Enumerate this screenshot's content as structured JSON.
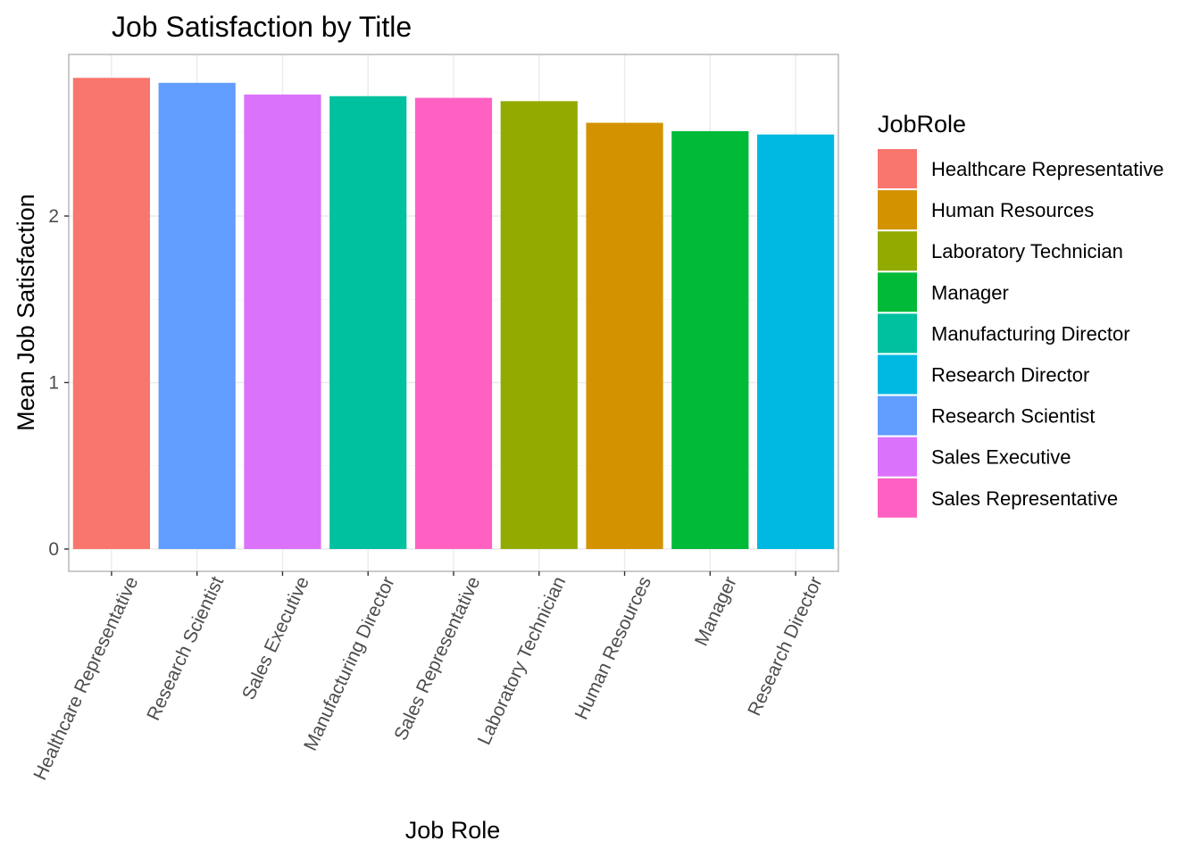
{
  "chart_data": {
    "type": "bar",
    "title": "Job Satisfaction by Title",
    "xlabel": "Job Role",
    "ylabel": "Mean Job Satisfaction",
    "ylim": [
      0,
      2.96
    ],
    "yticks": [
      0,
      1,
      2
    ],
    "grid": true,
    "legend_position": "right",
    "legend_title": "JobRole",
    "categories": [
      "Healthcare Representative",
      "Research Scientist",
      "Sales Executive",
      "Manufacturing Director",
      "Sales Representative",
      "Laboratory Technician",
      "Human Resources",
      "Manager",
      "Research Director"
    ],
    "values": [
      2.83,
      2.8,
      2.73,
      2.72,
      2.71,
      2.69,
      2.56,
      2.51,
      2.49
    ],
    "colors": {
      "Healthcare Representative": "#F8766D",
      "Human Resources": "#D39200",
      "Laboratory Technician": "#93AA00",
      "Manager": "#00BA38",
      "Manufacturing Director": "#00C19F",
      "Research Director": "#00B9E3",
      "Research Scientist": "#619CFF",
      "Sales Executive": "#DB72FB",
      "Sales Representative": "#FF61C3"
    },
    "legend_order": [
      "Healthcare Representative",
      "Human Resources",
      "Laboratory Technician",
      "Manager",
      "Manufacturing Director",
      "Research Director",
      "Research Scientist",
      "Sales Executive",
      "Sales Representative"
    ]
  }
}
